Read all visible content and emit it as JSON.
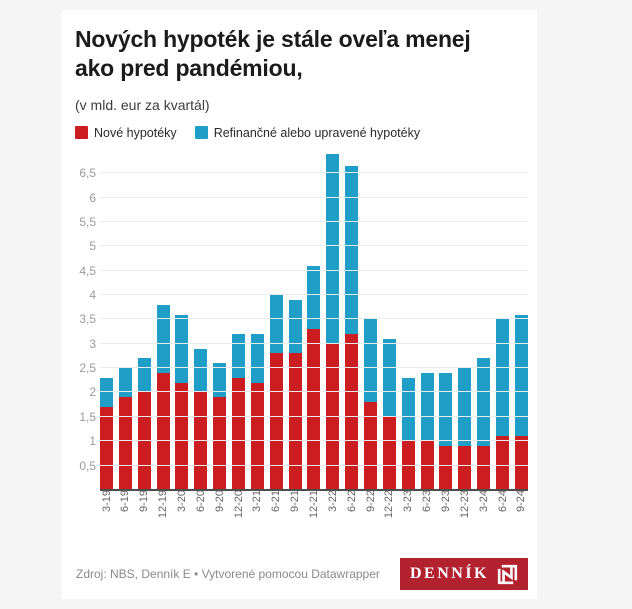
{
  "header": {
    "title_line1": "Nových hypoték je stále oveľa menej",
    "title_line2": "ako pred pandémiou,",
    "subtitle": "(v mld. eur za kvartál)"
  },
  "legend": [
    {
      "label": "Nové hypotéky",
      "color": "#cc1e20",
      "icon": "red-swatch"
    },
    {
      "label": "Refinančné alebo upravené hypotéky",
      "color": "#1f9fc7",
      "icon": "blue-swatch"
    }
  ],
  "chart_data": {
    "type": "bar",
    "stacked": true,
    "title": "Nových hypoték je stále oveľa menej ako pred pandémiou,",
    "subtitle": "(v mld. eur za kvartál)",
    "xlabel": "",
    "ylabel": "v mld. eur za kvartál",
    "categories": [
      "3-19",
      "6-19",
      "9-19",
      "12-19",
      "3-20",
      "6-20",
      "9-20",
      "12-20",
      "3-21",
      "6-21",
      "9-21",
      "12-21",
      "3-22",
      "6-22",
      "9-22",
      "12-22",
      "3-23",
      "6-23",
      "9-23",
      "12-23",
      "3-24",
      "6-24",
      "9-24"
    ],
    "series": [
      {
        "name": "Nové hypotéky",
        "color": "#cc1e20",
        "values": [
          1.7,
          1.9,
          2.0,
          2.4,
          2.2,
          2.0,
          1.9,
          2.3,
          2.2,
          2.8,
          2.8,
          3.3,
          3.0,
          3.2,
          1.8,
          1.5,
          1.0,
          1.0,
          0.9,
          0.9,
          0.9,
          1.1,
          1.1
        ]
      },
      {
        "name": "Refinančné alebo upravené hypotéky",
        "color": "#1f9fc7",
        "values": [
          0.6,
          0.6,
          0.7,
          1.4,
          1.4,
          0.9,
          0.7,
          0.9,
          1.0,
          1.2,
          1.1,
          1.3,
          3.9,
          3.45,
          1.7,
          1.6,
          1.3,
          1.4,
          1.5,
          1.6,
          1.8,
          2.4,
          2.5
        ]
      }
    ],
    "totals": [
      2.3,
      2.5,
      2.7,
      3.8,
      3.6,
      2.9,
      2.6,
      3.2,
      3.2,
      4.0,
      3.9,
      4.6,
      6.9,
      6.65,
      3.5,
      3.1,
      2.3,
      2.4,
      2.4,
      2.5,
      2.7,
      3.5,
      3.6
    ],
    "ylim": [
      0,
      7
    ],
    "yticks": [
      0.5,
      1,
      1.5,
      2,
      2.5,
      3,
      3.5,
      4,
      4.5,
      5,
      5.5,
      6,
      6.5
    ],
    "ytick_labels": [
      "0,5",
      "1",
      "1,5",
      "2",
      "2,5",
      "3",
      "3,5",
      "4",
      "4,5",
      "5",
      "5,5",
      "6",
      "6,5"
    ],
    "grid": true,
    "legend_position": "top"
  },
  "footer": {
    "source": "Zdroj: NBS, Denník E • Vytvorené pomocou Datawrapper",
    "logo_text": "DENNÍK",
    "logo_color": "#b2212e"
  }
}
